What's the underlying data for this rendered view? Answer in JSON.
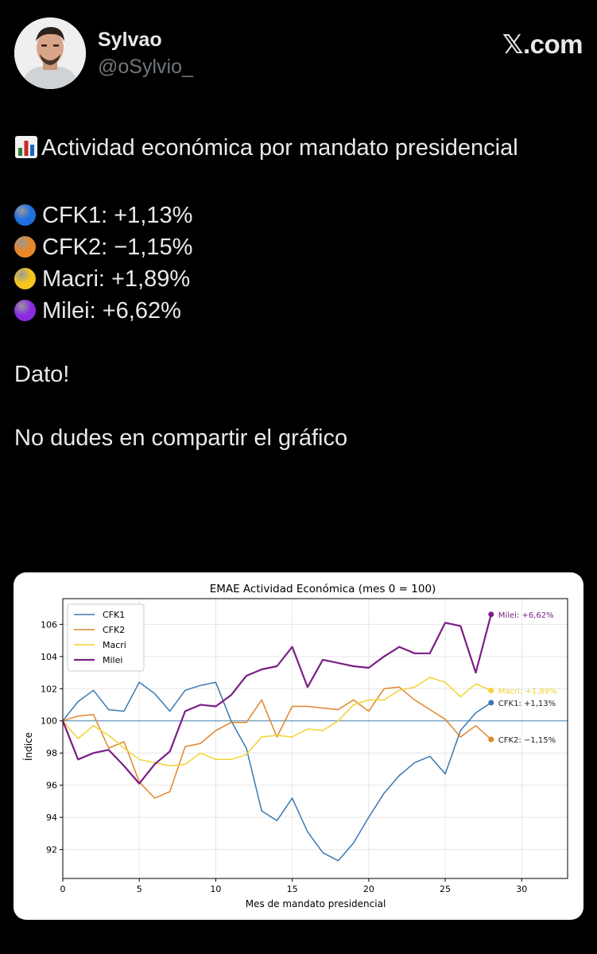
{
  "author": {
    "name": "Sylvao",
    "handle": "@oSylvio_",
    "site": "𝕏.com"
  },
  "tweet": {
    "title": "Actividad económica por mandato presidencial",
    "items": [
      {
        "label": "CFK1: +1,13%",
        "color": "#1f6fe0"
      },
      {
        "label": "CFK2: −1,15%",
        "color": "#e8882a"
      },
      {
        "label": "Macri: +1,89%",
        "color": "#f5c61e"
      },
      {
        "label": "Milei: +6,62%",
        "color": "#8a2be2"
      }
    ],
    "line1": "Dato!",
    "line2": "No dudes en compartir el gráfico"
  },
  "chart_data": {
    "type": "line",
    "title": "EMAE Actividad Económica (mes 0 = 100)",
    "xlabel": "Mes de mandato presidencial",
    "ylabel": "Índice",
    "xlim": [
      0,
      33
    ],
    "ylim": [
      90.2,
      107.6
    ],
    "xticks": [
      0,
      5,
      10,
      15,
      20,
      25,
      30
    ],
    "yticks": [
      92,
      94,
      96,
      98,
      100,
      102,
      104,
      106
    ],
    "reference_line": 100,
    "grid": true,
    "legend_position": "upper-left",
    "series": [
      {
        "name": "CFK1",
        "color": "#3a78b2",
        "end_label": "CFK1: +1,13%",
        "values": [
          100,
          101.2,
          101.9,
          100.7,
          100.6,
          102.4,
          101.7,
          100.6,
          101.9,
          102.2,
          102.4,
          100.0,
          98.3,
          94.4,
          93.8,
          95.2,
          93.1,
          91.8,
          91.3,
          92.4,
          94.0,
          95.5,
          96.6,
          97.4,
          97.8,
          96.7,
          99.4,
          100.5,
          101.13
        ]
      },
      {
        "name": "CFK2",
        "color": "#e0852c",
        "end_label": "CFK2: −1,15%",
        "values": [
          100,
          100.3,
          100.4,
          98.3,
          98.7,
          96.2,
          95.2,
          95.6,
          98.4,
          98.6,
          99.4,
          99.9,
          99.9,
          101.3,
          99.0,
          100.9,
          100.9,
          100.8,
          100.7,
          101.3,
          100.6,
          102.0,
          102.1,
          101.3,
          100.7,
          100.1,
          99.0,
          99.7,
          98.85
        ]
      },
      {
        "name": "Macri",
        "color": "#f0d431",
        "end_label": "Macri: +1,89%",
        "values": [
          100,
          98.9,
          99.7,
          99.1,
          98.3,
          97.6,
          97.4,
          97.2,
          97.3,
          98.0,
          97.6,
          97.6,
          97.9,
          99.0,
          99.1,
          99.0,
          99.5,
          99.4,
          100.0,
          101.0,
          101.3,
          101.3,
          101.9,
          102.1,
          102.7,
          102.4,
          101.5,
          102.3,
          101.89
        ]
      },
      {
        "name": "Milei",
        "color": "#7a1f86",
        "end_label": "Milei: +6,62%",
        "values": [
          100,
          97.6,
          98.0,
          98.2,
          97.2,
          96.1,
          97.3,
          98.1,
          100.6,
          101.0,
          100.9,
          101.6,
          102.8,
          103.2,
          103.4,
          104.6,
          102.1,
          103.8,
          103.6,
          103.4,
          103.3,
          104.0,
          104.6,
          104.2,
          104.2,
          106.1,
          105.9,
          103.0,
          106.62
        ]
      }
    ]
  }
}
